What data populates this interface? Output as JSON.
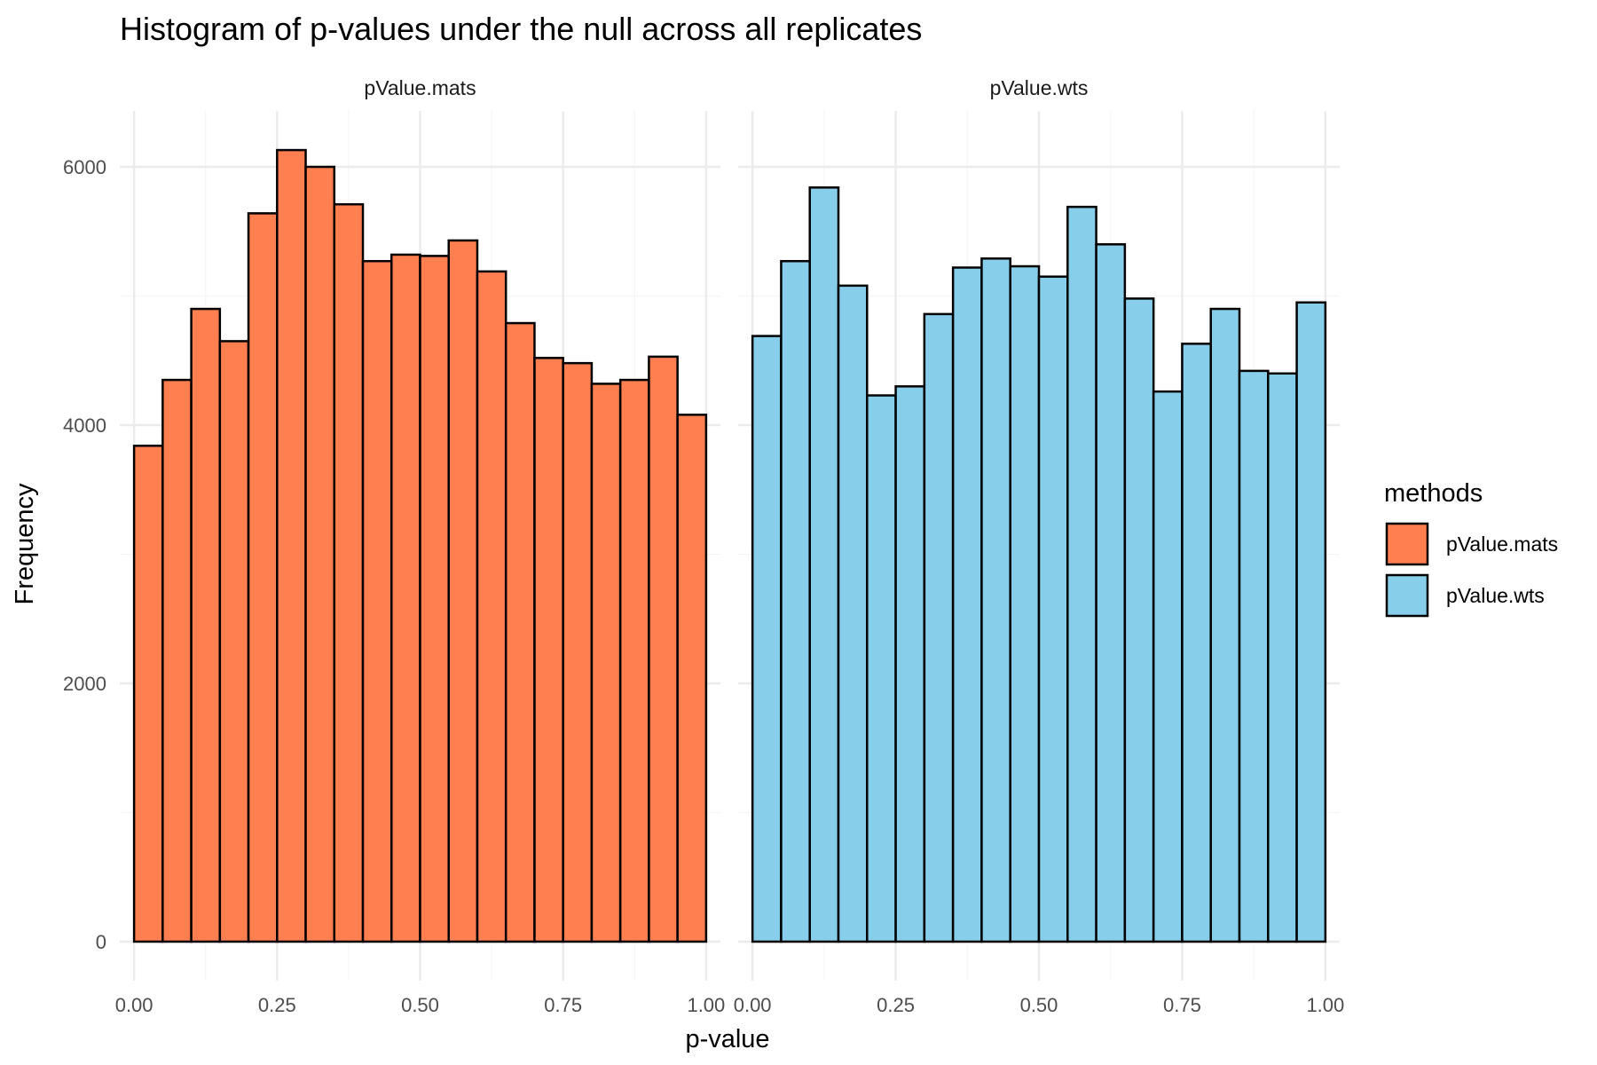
{
  "chart_data": {
    "type": "bar",
    "title": "Histogram of p-values under the null across all replicates",
    "xlabel": "p-value",
    "ylabel": "Frequency",
    "xlim": [
      -0.025,
      1.025
    ],
    "ylim": [
      0,
      6200
    ],
    "x_ticks": [
      0.0,
      0.25,
      0.5,
      0.75,
      1.0
    ],
    "x_tick_labels": [
      "0.00",
      "0.25",
      "0.50",
      "0.75",
      "1.00"
    ],
    "y_ticks": [
      0,
      2000,
      4000,
      6000
    ],
    "y_tick_labels": [
      "0",
      "2000",
      "4000",
      "6000"
    ],
    "bin_width": 0.05,
    "bin_starts": [
      0.0,
      0.05,
      0.1,
      0.15,
      0.2,
      0.25,
      0.3,
      0.35,
      0.4,
      0.45,
      0.5,
      0.55,
      0.6,
      0.65,
      0.7,
      0.75,
      0.8,
      0.85,
      0.9,
      0.95
    ],
    "grid": true,
    "legend_position": "right",
    "legend_title": "methods",
    "series": [
      {
        "name": "pValue.mats",
        "color": "#FF7F50",
        "values": [
          3840,
          4350,
          4900,
          4650,
          5640,
          6130,
          6000,
          5710,
          5270,
          5320,
          5310,
          5430,
          5190,
          4790,
          4520,
          4480,
          4320,
          4350,
          4530,
          4080
        ]
      },
      {
        "name": "pValue.wts",
        "color": "#87CEEB",
        "values": [
          4690,
          5270,
          5840,
          5080,
          4230,
          4300,
          4860,
          5220,
          5290,
          5230,
          5150,
          5690,
          5400,
          4980,
          4260,
          4630,
          4900,
          4420,
          4400,
          4950
        ]
      }
    ],
    "facets": [
      "pValue.mats",
      "pValue.wts"
    ]
  },
  "colors": {
    "outline": "#000000",
    "grid_major": "#ebebeb",
    "grid_minor": "#f5f5f5",
    "background": "#ffffff"
  }
}
